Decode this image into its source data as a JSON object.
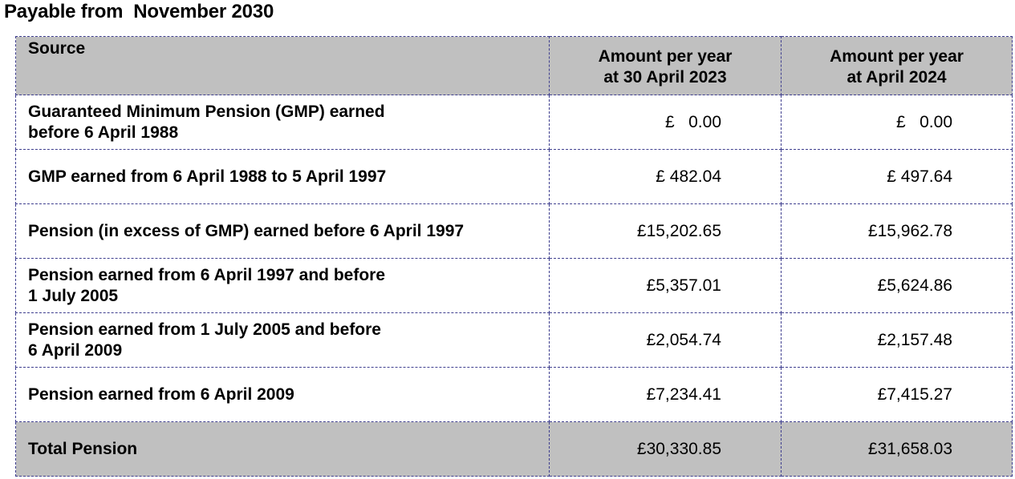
{
  "page": {
    "title": "Payable from  November 2030"
  },
  "table": {
    "header": {
      "source": "Source",
      "col1_line1": "Amount per year",
      "col1_line2": "at 30 April 2023",
      "col2_line1": "Amount per year",
      "col2_line2": "at April 2024"
    },
    "rows": [
      {
        "line1": "Guaranteed Minimum Pension (GMP) earned",
        "line2": "before 6 April 1988",
        "amount_2023": "£   0.00",
        "amount_2024": "£   0.00"
      },
      {
        "line1": "GMP earned from 6 April 1988 to 5 April 1997",
        "line2": "",
        "amount_2023": "£ 482.04",
        "amount_2024": "£ 497.64"
      },
      {
        "line1": "Pension (in excess of GMP) earned before 6 April 1997",
        "line2": "",
        "amount_2023": "£15,202.65",
        "amount_2024": "£15,962.78"
      },
      {
        "line1": "Pension earned from 6 April 1997 and before",
        "line2": "1 July 2005",
        "amount_2023": "£5,357.01",
        "amount_2024": "£5,624.86"
      },
      {
        "line1": "Pension earned from 1 July 2005 and before",
        "line2": "6 April 2009",
        "amount_2023": "£2,054.74",
        "amount_2024": "£2,157.48"
      },
      {
        "line1": "Pension earned from 6 April 2009",
        "line2": "",
        "amount_2023": "£7,234.41",
        "amount_2024": "£7,415.27"
      }
    ],
    "total": {
      "label": "Total Pension",
      "amount_2023": "£30,330.85",
      "amount_2024": "£31,658.03"
    }
  }
}
